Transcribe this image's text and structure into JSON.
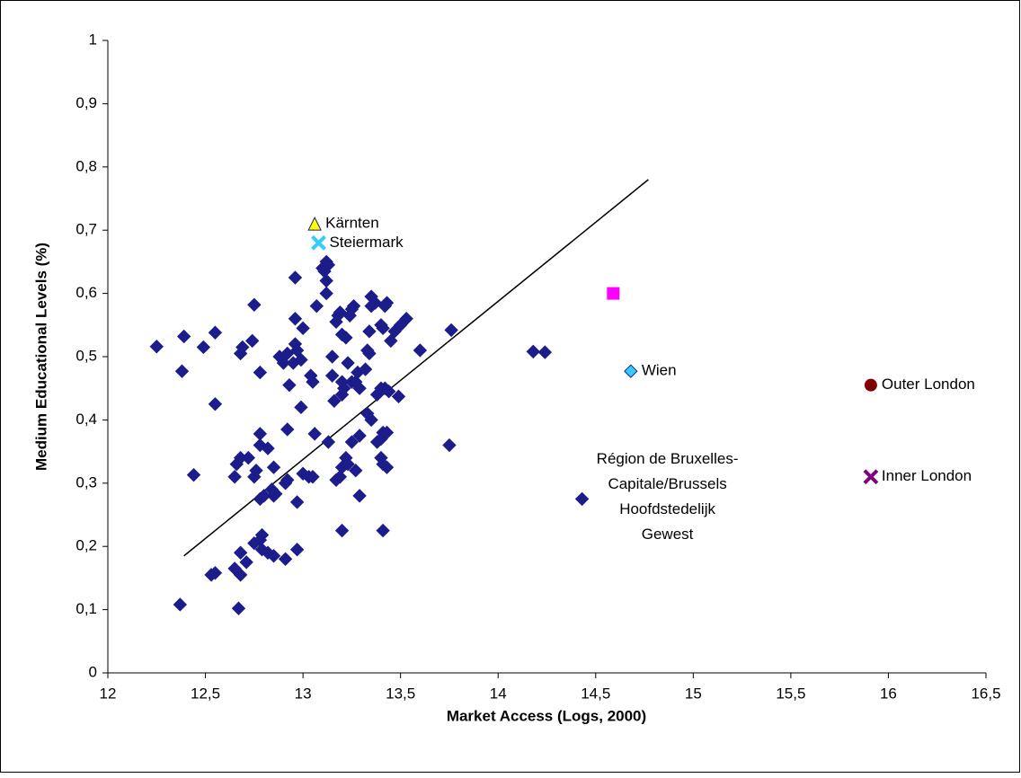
{
  "chart_data": {
    "type": "scatter",
    "xlabel": "Market Access (Logs, 2000)",
    "ylabel": "Medium Educational Levels (%)",
    "xlim": [
      12,
      16.5
    ],
    "ylim": [
      0,
      1
    ],
    "xticks": [
      12,
      {
        "value": 12.5,
        "label": "12,5"
      },
      13,
      {
        "value": 13.5,
        "label": "13,5"
      },
      14,
      {
        "value": 14.5,
        "label": "14,5"
      },
      15,
      {
        "value": 15.5,
        "label": "15,5"
      },
      16,
      {
        "value": 16.5,
        "label": "16,5"
      }
    ],
    "yticks": [
      0,
      {
        "value": 0.1,
        "label": "0,1"
      },
      {
        "value": 0.2,
        "label": "0,2"
      },
      {
        "value": 0.3,
        "label": "0,3"
      },
      {
        "value": 0.4,
        "label": "0,4"
      },
      {
        "value": 0.5,
        "label": "0,5"
      },
      {
        "value": 0.6,
        "label": "0,6"
      },
      {
        "value": 0.7,
        "label": "0,7"
      },
      {
        "value": 0.8,
        "label": "0,8"
      },
      {
        "value": 0.9,
        "label": "0,9"
      },
      1
    ],
    "grid": false,
    "trendline": {
      "color": "#000000",
      "x": [
        12.39,
        14.77
      ],
      "y": [
        0.185,
        0.78
      ]
    },
    "series": [
      {
        "color": "#1c1c8a",
        "marker": "diamond",
        "x": [
          12.25,
          12.39,
          12.38,
          12.49,
          12.55,
          12.55,
          12.44,
          12.37,
          12.67,
          12.53,
          12.55,
          12.65,
          12.68,
          12.68,
          12.71,
          12.65,
          12.66,
          12.68,
          12.72,
          12.68,
          12.69,
          12.74,
          12.75,
          12.78,
          12.75,
          12.78,
          12.79,
          12.79,
          12.82,
          12.85,
          12.78,
          12.8,
          12.84,
          12.85,
          12.86,
          12.75,
          12.76,
          12.78,
          12.78,
          12.82,
          12.85,
          12.88,
          12.9,
          12.92,
          12.93,
          12.95,
          12.96,
          12.97,
          12.99,
          12.96,
          13.0,
          12.96,
          12.92,
          12.99,
          12.91,
          12.92,
          12.97,
          12.97,
          12.91,
          13.0,
          13.03,
          13.05,
          13.04,
          13.05,
          13.06,
          13.07,
          13.1,
          13.11,
          13.12,
          13.13,
          13.12,
          13.12,
          13.13,
          13.15,
          13.15,
          13.16,
          13.17,
          13.18,
          13.19,
          13.2,
          13.2,
          13.2,
          13.21,
          13.22,
          13.24,
          13.25,
          13.26,
          13.23,
          13.25,
          13.27,
          13.29,
          13.28,
          13.17,
          13.19,
          13.2,
          13.22,
          13.23,
          13.25,
          13.27,
          13.29,
          13.29,
          13.2,
          13.32,
          13.33,
          13.34,
          13.33,
          13.35,
          13.34,
          13.35,
          13.35,
          13.37,
          13.4,
          13.41,
          13.42,
          13.43,
          13.38,
          13.4,
          13.42,
          13.44,
          13.38,
          13.4,
          13.41,
          13.43,
          13.4,
          13.41,
          13.43,
          13.41,
          13.45,
          13.47,
          13.5,
          13.53,
          13.49,
          13.6,
          13.76,
          13.75,
          14.18,
          14.24
        ],
        "values": [
          0.516,
          0.532,
          0.477,
          0.515,
          0.538,
          0.425,
          0.313,
          0.108,
          0.102,
          0.155,
          0.158,
          0.165,
          0.155,
          0.19,
          0.175,
          0.31,
          0.33,
          0.34,
          0.34,
          0.505,
          0.515,
          0.525,
          0.582,
          0.475,
          0.205,
          0.21,
          0.218,
          0.195,
          0.19,
          0.185,
          0.275,
          0.28,
          0.29,
          0.28,
          0.283,
          0.31,
          0.32,
          0.36,
          0.378,
          0.355,
          0.325,
          0.5,
          0.49,
          0.505,
          0.455,
          0.49,
          0.52,
          0.51,
          0.495,
          0.56,
          0.545,
          0.625,
          0.385,
          0.42,
          0.3,
          0.305,
          0.27,
          0.195,
          0.18,
          0.315,
          0.31,
          0.31,
          0.47,
          0.46,
          0.378,
          0.58,
          0.64,
          0.635,
          0.65,
          0.645,
          0.62,
          0.6,
          0.365,
          0.5,
          0.47,
          0.43,
          0.555,
          0.565,
          0.57,
          0.535,
          0.46,
          0.44,
          0.45,
          0.53,
          0.565,
          0.575,
          0.58,
          0.49,
          0.46,
          0.46,
          0.45,
          0.475,
          0.305,
          0.31,
          0.325,
          0.34,
          0.33,
          0.365,
          0.32,
          0.375,
          0.28,
          0.225,
          0.48,
          0.51,
          0.505,
          0.41,
          0.4,
          0.54,
          0.58,
          0.595,
          0.585,
          0.55,
          0.545,
          0.58,
          0.585,
          0.44,
          0.45,
          0.45,
          0.445,
          0.365,
          0.37,
          0.38,
          0.38,
          0.34,
          0.33,
          0.325,
          0.225,
          0.525,
          0.54,
          0.55,
          0.56,
          0.437,
          0.51,
          0.542,
          0.36,
          0.508,
          0.507
        ]
      },
      {
        "name": "Kärnten",
        "color": "#ffff00",
        "marker": "triangle",
        "x": [
          13.06
        ],
        "values": [
          0.71
        ]
      },
      {
        "name": "Steiermark",
        "color": "#33ccff",
        "marker": "x",
        "x": [
          13.08
        ],
        "values": [
          0.68
        ]
      },
      {
        "color": "#ff00ff",
        "marker": "square",
        "x": [
          14.59
        ],
        "values": [
          0.6
        ]
      },
      {
        "name": "Wien",
        "color": "#33ccff",
        "marker": "diamond",
        "x": [
          14.68
        ],
        "values": [
          0.477
        ]
      },
      {
        "name": "Outer London",
        "color": "#800000",
        "marker": "circle",
        "x": [
          15.91
        ],
        "values": [
          0.455
        ]
      },
      {
        "name": "Inner London",
        "color": "#800080",
        "marker": "x",
        "x": [
          15.91
        ],
        "values": [
          0.31
        ]
      },
      {
        "name": [
          "Région de Bruxelles-",
          "Capitale/Brussels",
          "Hoofdstedelijk",
          "Gewest"
        ],
        "color": "#1c1c8a",
        "marker": "diamond",
        "x": [
          14.43
        ],
        "values": [
          0.275
        ]
      }
    ]
  }
}
